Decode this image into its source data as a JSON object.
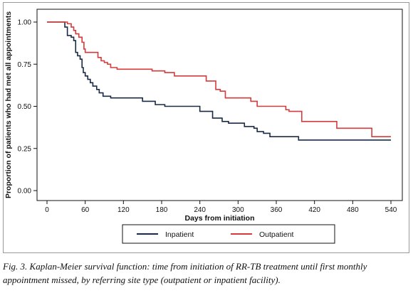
{
  "chart_data": {
    "type": "line",
    "step": true,
    "title": "",
    "xlabel": "Days from initiation",
    "ylabel": "Proportion of patients who had met all appointments",
    "xlim": [
      0,
      540
    ],
    "ylim": [
      0,
      1
    ],
    "xticks": [
      "0",
      "60",
      "120",
      "180",
      "240",
      "300",
      "360",
      "420",
      "480",
      "540"
    ],
    "yticks": [
      "0.00",
      "0.25",
      "0.50",
      "0.75",
      "1.00"
    ],
    "grid": false,
    "legend_position": "bottom",
    "series": [
      {
        "name": "Inpatient",
        "color": "#1a2a44",
        "x": [
          0,
          28,
          32,
          38,
          42,
          45,
          48,
          52,
          55,
          57,
          60,
          64,
          68,
          72,
          78,
          82,
          88,
          100,
          112,
          150,
          170,
          185,
          240,
          260,
          275,
          285,
          310,
          325,
          330,
          340,
          350,
          395,
          540
        ],
        "y": [
          1.0,
          0.97,
          0.92,
          0.91,
          0.89,
          0.82,
          0.8,
          0.78,
          0.73,
          0.7,
          0.68,
          0.66,
          0.64,
          0.62,
          0.6,
          0.58,
          0.56,
          0.55,
          0.55,
          0.53,
          0.51,
          0.5,
          0.47,
          0.43,
          0.41,
          0.4,
          0.38,
          0.37,
          0.35,
          0.34,
          0.32,
          0.3,
          0.3
        ]
      },
      {
        "name": "Outpatient",
        "color": "#d63a3a",
        "x": [
          0,
          28,
          32,
          38,
          42,
          45,
          50,
          55,
          58,
          60,
          80,
          85,
          90,
          95,
          100,
          110,
          120,
          165,
          185,
          200,
          250,
          265,
          272,
          280,
          300,
          320,
          330,
          360,
          375,
          380,
          400,
          455,
          510,
          540
        ],
        "y": [
          1.0,
          1.0,
          0.99,
          0.97,
          0.95,
          0.93,
          0.91,
          0.88,
          0.84,
          0.82,
          0.79,
          0.77,
          0.76,
          0.75,
          0.73,
          0.72,
          0.72,
          0.71,
          0.7,
          0.68,
          0.65,
          0.6,
          0.59,
          0.55,
          0.55,
          0.53,
          0.5,
          0.5,
          0.48,
          0.47,
          0.41,
          0.37,
          0.32,
          0.32
        ]
      }
    ]
  },
  "caption": "Fig. 3. Kaplan-Meier survival function: time from initiation of RR-TB treatment until first monthly appointment missed, by referring site type (outpatient or inpatient facility)."
}
